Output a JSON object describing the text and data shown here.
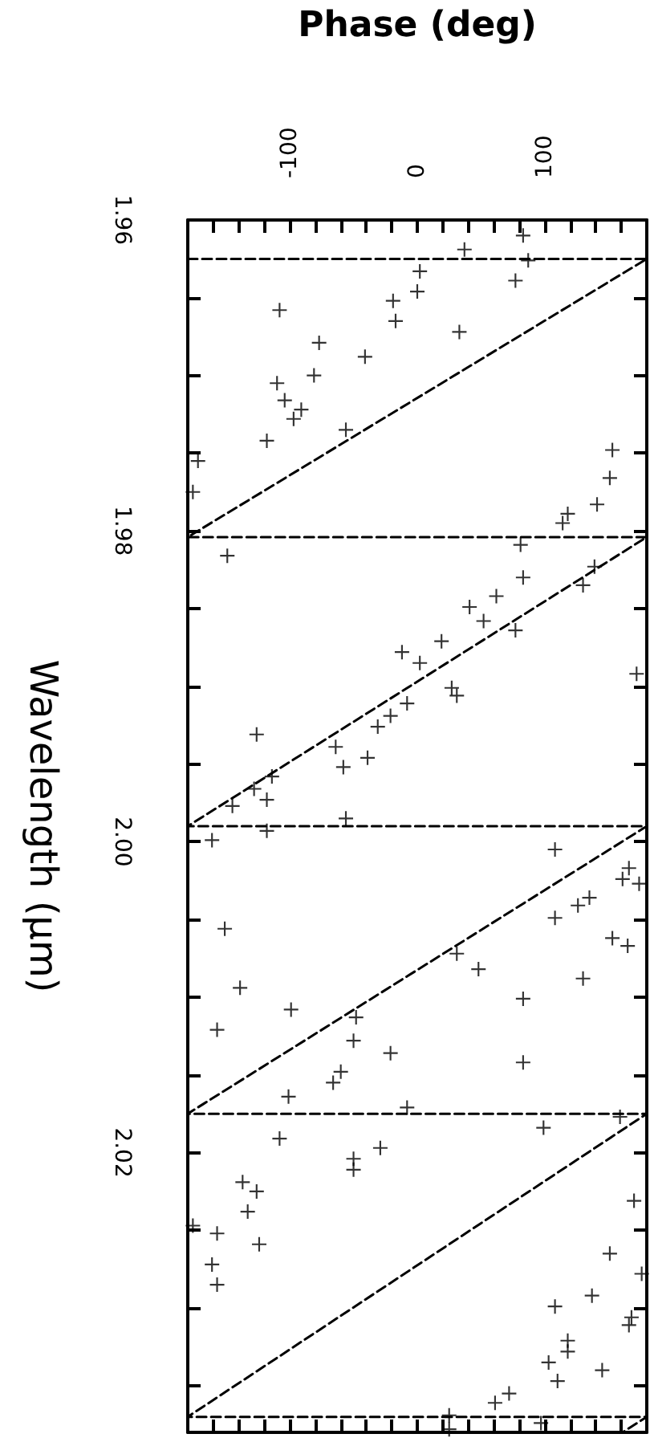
{
  "chart_data": {
    "type": "scatter",
    "ylabel": "Wavelength (μm)",
    "xlabel": "Phase (deg)",
    "ylim": [
      2.038,
      1.96
    ],
    "yticks": [
      {
        "value": 1.96,
        "label": "1.96"
      },
      {
        "value": 1.965,
        "label": null
      },
      {
        "value": 1.97,
        "label": null
      },
      {
        "value": 1.975,
        "label": null
      },
      {
        "value": 1.98,
        "label": "1.98"
      },
      {
        "value": 1.985,
        "label": null
      },
      {
        "value": 1.99,
        "label": null
      },
      {
        "value": 1.995,
        "label": null
      },
      {
        "value": 2.0,
        "label": "2.00"
      },
      {
        "value": 2.005,
        "label": null
      },
      {
        "value": 2.01,
        "label": null
      },
      {
        "value": 2.015,
        "label": null
      },
      {
        "value": 2.02,
        "label": "2.02"
      },
      {
        "value": 2.025,
        "label": null
      },
      {
        "value": 2.03,
        "label": null
      },
      {
        "value": 2.035,
        "label": null
      }
    ],
    "xlim": [
      -180,
      180
    ],
    "xticks": [
      {
        "value": -180,
        "label": null
      },
      {
        "value": -160,
        "label": null
      },
      {
        "value": -140,
        "label": null
      },
      {
        "value": -120,
        "label": null
      },
      -100,
      {
        "value": -80,
        "label": null
      },
      {
        "value": -60,
        "label": null
      },
      {
        "value": -40,
        "label": null
      },
      {
        "value": -20,
        "label": null
      },
      0,
      {
        "value": 20,
        "label": null
      },
      {
        "value": 40,
        "label": null
      },
      {
        "value": 60,
        "label": null
      },
      {
        "value": 80,
        "label": null
      },
      100,
      {
        "value": 120,
        "label": null
      },
      {
        "value": 140,
        "label": null
      },
      {
        "value": 160,
        "label": null
      },
      {
        "value": 180,
        "label": null
      }
    ],
    "marker": "cross",
    "series": [
      {
        "color": "#000000",
        "values": [
          1.961,
          1.9619,
          1.9626,
          1.9633,
          1.9646,
          1.9639,
          1.9652,
          1.9665,
          1.9658,
          1.9672,
          1.9679,
          1.9688,
          1.97,
          1.9705,
          1.9716,
          1.9722,
          1.9728,
          1.9742,
          1.9735,
          1.9755,
          1.9748,
          1.9766,
          1.9775,
          1.9783,
          1.9789,
          1.9795,
          1.9816,
          1.9809,
          1.983,
          1.9842,
          1.9849,
          1.9858,
          1.9823,
          1.9835,
          1.9864,
          1.9871,
          1.9878,
          1.9885,
          1.9901,
          1.9906,
          1.9911,
          1.9919,
          1.9926,
          1.9931,
          1.9939,
          1.9952,
          1.9946,
          1.9958,
          1.9966,
          1.9973,
          1.9977,
          1.9985,
          1.9993,
          1.9999,
          1.9892,
          2.0005,
          2.0017,
          2.0024,
          2.0027,
          2.0036,
          2.0041,
          2.0049,
          2.0056,
          2.0062,
          2.0067,
          2.0072,
          2.0082,
          2.0094,
          2.0101,
          2.0088,
          2.0108,
          2.0121,
          2.0113,
          2.0128,
          2.0136,
          2.0142,
          2.0148,
          2.0155,
          2.0164,
          2.0171,
          2.0184,
          2.0177,
          2.0191,
          2.0197,
          2.0204,
          2.0211,
          2.0219,
          2.0225,
          2.0238,
          2.0252,
          2.0247,
          2.0259,
          2.0272,
          2.0285,
          2.0231,
          2.0265,
          2.0278,
          2.0292,
          2.0299,
          2.0306,
          2.0311,
          2.0321,
          2.0328,
          2.0335,
          2.034,
          2.0347,
          2.0355,
          2.0361,
          2.0369,
          2.0378,
          2.0374
        ],
        "x": [
          83,
          37,
          87,
          2,
          0,
          77,
          -19,
          -17,
          -108,
          33,
          -77,
          -41,
          -81,
          -110,
          -104,
          -91,
          -97,
          -118,
          -56,
          -172,
          153,
          151,
          -176,
          141,
          118,
          114,
          -149,
          81,
          83,
          62,
          41,
          52,
          139,
          130,
          77,
          19,
          -12,
          2,
          27,
          31,
          -8,
          -21,
          -31,
          -126,
          -64,
          -58,
          -39,
          -114,
          -128,
          -118,
          -145,
          -56,
          -118,
          -161,
          172,
          108,
          166,
          161,
          174,
          135,
          126,
          108,
          -151,
          153,
          165,
          31,
          48,
          -139,
          83,
          130,
          -99,
          -157,
          -48,
          -50,
          -21,
          83,
          -60,
          -66,
          -101,
          -8,
          99,
          159,
          -108,
          -29,
          -50,
          -50,
          -137,
          -126,
          -133,
          -157,
          -176,
          -124,
          -161,
          -157,
          170,
          151,
          176,
          137,
          108,
          168,
          166,
          118,
          118,
          103,
          145,
          110,
          72,
          61,
          25,
          25,
          97
        ]
      },
      {
        "type": "line",
        "color": "#000000",
        "line_style": "dashed",
        "marker": "none",
        "values": [
          1.9625,
          1.9625,
          1.9804,
          1.9804,
          1.999,
          1.999,
          2.0175,
          2.0175,
          2.037,
          2.037,
          2.038
        ],
        "x": [
          -180,
          180,
          -180,
          180,
          -180,
          180,
          -180,
          180,
          -180,
          180,
          161
        ]
      }
    ]
  }
}
